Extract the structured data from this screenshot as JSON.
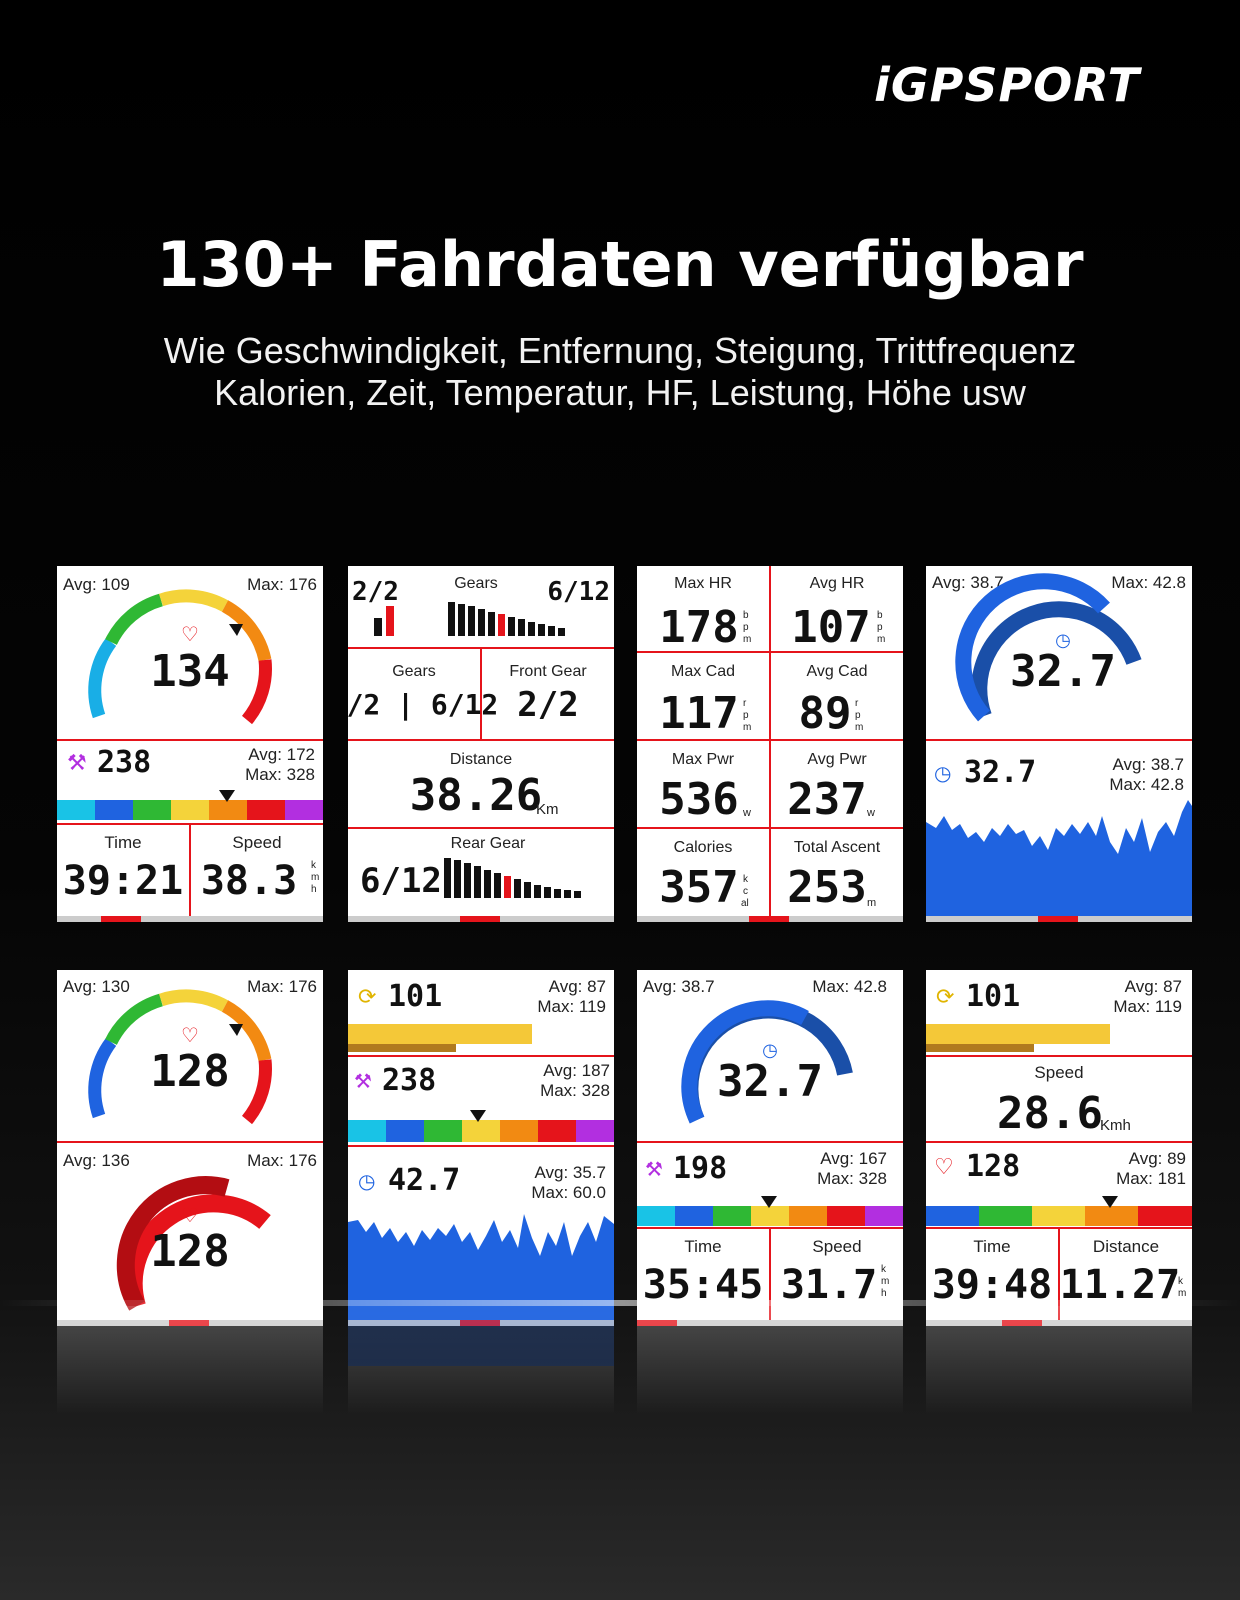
{
  "brand": "iGPSPORT",
  "headline": "130+ Fahrdaten verfügbar",
  "subtitle_lines": [
    "Wie Geschwindigkeit, Entfernung, Steigung, Trittfrequenz",
    "Kalorien, Zeit, Temperatur, HF, Leistung, Höhe usw"
  ],
  "colors": {
    "red": "#e5141b",
    "orange": "#f28a12",
    "yellow": "#f4d33a",
    "green": "#2fb834",
    "blue": "#1f63e0",
    "cyan": "#19c3e6",
    "purple": "#b22fe0",
    "dark_blue": "#1a4fa8",
    "darkred": "#b30d12"
  },
  "screens": [
    {
      "id": "hr-gauge-power",
      "top_avg": "Avg: 109",
      "top_max": "Max: 176",
      "hr_value": "134",
      "power_value": "238",
      "power_avg": "Avg: 172",
      "power_max": "Max: 328",
      "time_label": "Time",
      "time_value": "39:21",
      "speed_label": "Speed",
      "speed_value": "38.3",
      "speed_unit": [
        "k",
        "m",
        "h"
      ]
    },
    {
      "id": "gears",
      "gears_left": "2/2",
      "gears_title": "Gears",
      "gears_right": "6/12",
      "gears_label": "Gears",
      "gears_value": "2/2 | 6/12",
      "front_label": "Front Gear",
      "front_value": "2/2",
      "distance_label": "Distance",
      "distance_value": "38.26",
      "distance_unit": "Km",
      "rear_label": "Rear Gear",
      "rear_value": "6/12"
    },
    {
      "id": "grid-stats",
      "cells": [
        {
          "label": "Max HR",
          "value": "178",
          "unit": [
            "b",
            "p",
            "m"
          ]
        },
        {
          "label": "Avg HR",
          "value": "107",
          "unit": [
            "b",
            "p",
            "m"
          ]
        },
        {
          "label": "Max Cad",
          "value": "117",
          "unit": [
            "r",
            "p",
            "m"
          ]
        },
        {
          "label": "Avg Cad",
          "value": "89",
          "unit": [
            "r",
            "p",
            "m"
          ]
        },
        {
          "label": "Max Pwr",
          "value": "536",
          "unit": [
            "w"
          ]
        },
        {
          "label": "Avg Pwr",
          "value": "237",
          "unit": [
            "w"
          ]
        },
        {
          "label": "Calories",
          "value": "357",
          "unit": [
            "k",
            "c",
            "al"
          ]
        },
        {
          "label": "Total Ascent",
          "value": "253",
          "unit": [
            "m"
          ]
        }
      ]
    },
    {
      "id": "speed-gauge-graph",
      "top_avg": "Avg: 38.7",
      "top_max": "Max: 42.8",
      "gauge_value": "32.7",
      "speed_value": "32.7",
      "speed_avg": "Avg: 38.7",
      "speed_max": "Max: 42.8"
    },
    {
      "id": "hr-double-gauge",
      "top_avg": "Avg: 130",
      "top_max": "Max: 176",
      "hr_value": "128",
      "bottom_avg": "Avg: 136",
      "bottom_max": "Max: 176",
      "hr_value_2": "128"
    },
    {
      "id": "cadence-power-speed",
      "cad_value": "101",
      "cad_avg": "Avg: 87",
      "cad_max": "Max: 119",
      "power_value": "238",
      "power_avg": "Avg: 187",
      "power_max": "Max: 328",
      "speed_value": "42.7",
      "speed_avg": "Avg: 35.7",
      "speed_max": "Max: 60.0"
    },
    {
      "id": "speed-gauge-power",
      "top_avg": "Avg: 38.7",
      "top_max": "Max: 42.8",
      "gauge_value": "32.7",
      "power_value": "198",
      "power_avg": "Avg: 167",
      "power_max": "Max: 328",
      "time_label": "Time",
      "time_value": "35:45",
      "speed_label": "Speed",
      "speed_value": "31.7",
      "speed_unit": [
        "k",
        "m",
        "h"
      ]
    },
    {
      "id": "cadence-speed-hr",
      "cad_value": "101",
      "cad_avg": "Avg: 87",
      "cad_max": "Max: 119",
      "speed_label": "Speed",
      "speed_value": "28.6",
      "speed_unit": "Kmh",
      "hr_value": "128",
      "hr_avg": "Avg: 89",
      "hr_max": "Max: 181",
      "time_label": "Time",
      "time_value": "39:48",
      "distance_label": "Distance",
      "distance_value": "11.27",
      "distance_unit": [
        "k",
        "m"
      ]
    }
  ]
}
